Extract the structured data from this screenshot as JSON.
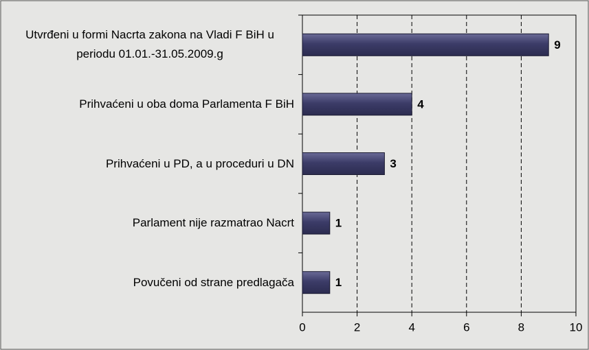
{
  "chart_data": {
    "type": "bar",
    "orientation": "horizontal",
    "categories": [
      "Utvrđeni u formi Nacrta zakona na Vladi F BiH u periodu 01.01.-31.05.2009.g",
      "Prihvaćeni u oba doma Parlamenta F BiH",
      "Prihvaćeni u PD, a u proceduri u DN",
      "Parlament nije razmatrao Nacrt",
      "Povučeni od strane predlagača"
    ],
    "values": [
      9,
      4,
      3,
      1,
      1
    ],
    "color": "#3c3c68",
    "xlim": [
      0,
      10
    ],
    "xticks": [
      0,
      2,
      4,
      6,
      8,
      10
    ],
    "grid": true
  }
}
